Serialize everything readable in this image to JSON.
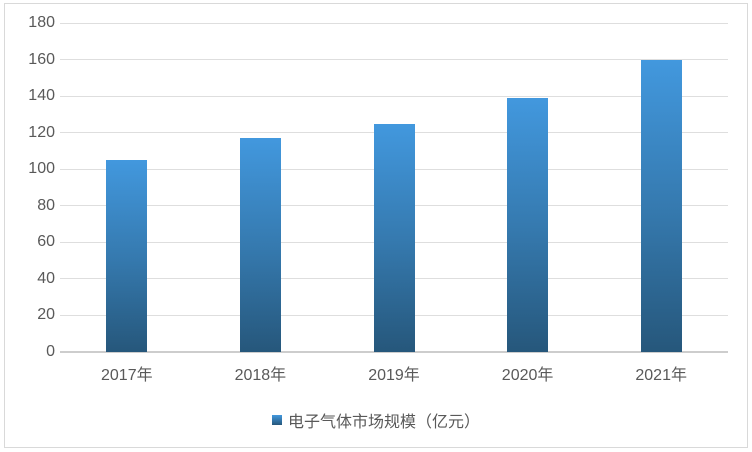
{
  "chart_data": {
    "type": "bar",
    "title": "",
    "categories": [
      "2017年",
      "2018年",
      "2019年",
      "2020年",
      "2021年"
    ],
    "values": [
      105,
      117,
      125,
      139,
      160
    ],
    "xlabel": "",
    "ylabel": "",
    "ylim": [
      0,
      180
    ],
    "y_tick_step": 20,
    "y_tick_labels": [
      "0",
      "20",
      "40",
      "60",
      "80",
      "100",
      "120",
      "140",
      "160",
      "180"
    ],
    "grid": true,
    "legend_position": "bottom",
    "legend": {
      "label": "电子气体市场规模（亿元）",
      "marker": "blue-square"
    },
    "colors": {
      "bar_gradient_top": "#4298de",
      "bar_gradient_mid": "#3579ae",
      "bar_gradient_bottom": "#26577b",
      "gridline": "#dedede",
      "axis_line": "#cdcdcd",
      "tick_text": "#595959",
      "frame_border": "#d9d9d9",
      "background": "#ffffff"
    }
  }
}
